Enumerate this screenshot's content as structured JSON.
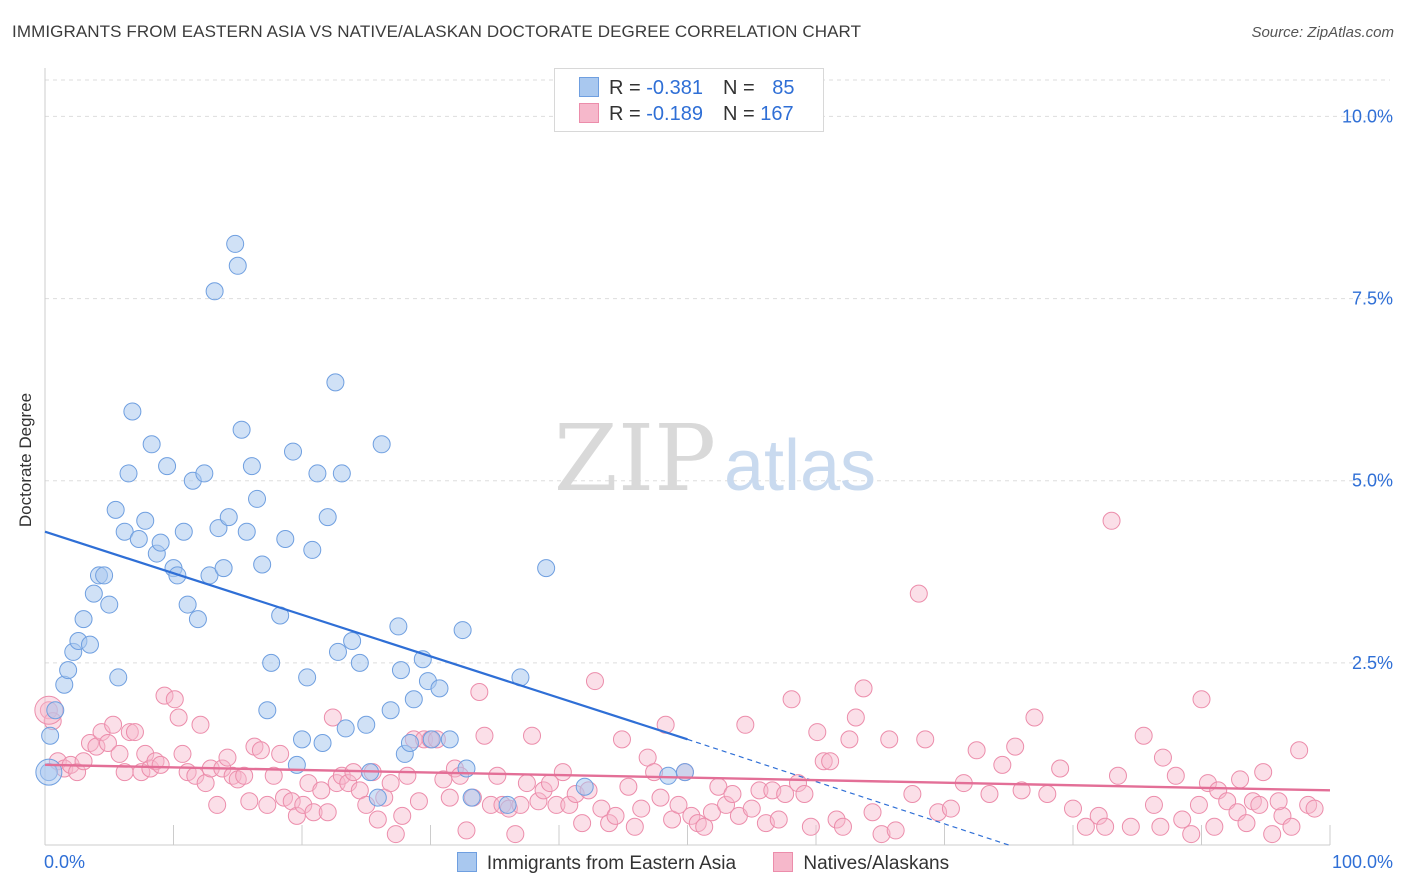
{
  "title": "IMMIGRANTS FROM EASTERN ASIA VS NATIVE/ALASKAN DOCTORATE DEGREE CORRELATION CHART",
  "source": "Source: ZipAtlas.com",
  "watermark": {
    "zip": "ZIP",
    "atlas": "atlas"
  },
  "colors": {
    "blue_fill": "#a9c8ef",
    "blue_stroke": "#6f9fe0",
    "blue_line": "#2f6fd6",
    "pink_fill": "#f6b8cb",
    "pink_stroke": "#ec8dab",
    "pink_line": "#e36f97",
    "tick_text": "#2f6fd6",
    "grid": "#dddddd"
  },
  "legend": {
    "rows": [
      {
        "r_label": "R = ",
        "r_value": "-0.381",
        "n_label": "N = ",
        "n_value": "85"
      },
      {
        "r_label": "R = ",
        "r_value": "-0.189",
        "n_label": "N = ",
        "n_value": "167"
      }
    ]
  },
  "chart_data": {
    "type": "scatter",
    "title": "IMMIGRANTS FROM EASTERN ASIA VS NATIVE/ALASKAN DOCTORATE DEGREE CORRELATION CHART",
    "xlabel": "",
    "ylabel": "Doctorate Degree",
    "xlim": [
      0,
      100
    ],
    "ylim": [
      0,
      10
    ],
    "x_tick_labels": [
      "0.0%",
      "100.0%"
    ],
    "y_ticks": [
      2.5,
      5.0,
      7.5,
      10.0
    ],
    "y_tick_labels": [
      "2.5%",
      "5.0%",
      "7.5%",
      "10.0%"
    ],
    "grid": true,
    "legend_position": "top-center",
    "series": [
      {
        "name": "Immigrants from Eastern Asia",
        "trend": {
          "x0": 0,
          "y0": 4.3,
          "x1": 50,
          "y1": 1.45,
          "dash_to_x": 75,
          "dash_to_y": 0.0
        },
        "points": [
          [
            0.3,
            1.0
          ],
          [
            0.4,
            1.5
          ],
          [
            0.8,
            1.85
          ],
          [
            1.5,
            2.2
          ],
          [
            1.8,
            2.4
          ],
          [
            2.2,
            2.65
          ],
          [
            2.6,
            2.8
          ],
          [
            3.0,
            3.1
          ],
          [
            3.5,
            2.75
          ],
          [
            3.8,
            3.45
          ],
          [
            4.2,
            3.7
          ],
          [
            4.6,
            3.7
          ],
          [
            5.0,
            3.3
          ],
          [
            5.5,
            4.6
          ],
          [
            5.7,
            2.3
          ],
          [
            6.2,
            4.3
          ],
          [
            6.5,
            5.1
          ],
          [
            6.8,
            5.95
          ],
          [
            7.3,
            4.2
          ],
          [
            7.8,
            4.45
          ],
          [
            8.3,
            5.5
          ],
          [
            8.7,
            4.0
          ],
          [
            9.0,
            4.15
          ],
          [
            9.5,
            5.2
          ],
          [
            10.0,
            3.8
          ],
          [
            10.3,
            3.7
          ],
          [
            10.8,
            4.3
          ],
          [
            11.1,
            3.3
          ],
          [
            11.5,
            5.0
          ],
          [
            11.9,
            3.1
          ],
          [
            12.4,
            5.1
          ],
          [
            12.8,
            3.7
          ],
          [
            13.2,
            7.6
          ],
          [
            13.5,
            4.35
          ],
          [
            13.9,
            3.8
          ],
          [
            14.3,
            4.5
          ],
          [
            14.8,
            8.25
          ],
          [
            15.0,
            7.95
          ],
          [
            15.3,
            5.7
          ],
          [
            15.7,
            4.3
          ],
          [
            16.1,
            5.2
          ],
          [
            16.5,
            4.75
          ],
          [
            16.9,
            3.85
          ],
          [
            17.3,
            1.85
          ],
          [
            17.6,
            2.5
          ],
          [
            18.3,
            3.15
          ],
          [
            18.7,
            4.2
          ],
          [
            19.3,
            5.4
          ],
          [
            19.6,
            1.1
          ],
          [
            20.0,
            1.45
          ],
          [
            20.4,
            2.3
          ],
          [
            20.8,
            4.05
          ],
          [
            21.2,
            5.1
          ],
          [
            21.6,
            1.4
          ],
          [
            22.0,
            4.5
          ],
          [
            22.6,
            6.35
          ],
          [
            22.8,
            2.65
          ],
          [
            23.1,
            5.1
          ],
          [
            23.4,
            1.6
          ],
          [
            23.9,
            2.8
          ],
          [
            24.5,
            2.5
          ],
          [
            25.0,
            1.65
          ],
          [
            25.3,
            1.0
          ],
          [
            25.9,
            0.65
          ],
          [
            26.2,
            5.5
          ],
          [
            26.9,
            1.85
          ],
          [
            27.5,
            3.0
          ],
          [
            27.7,
            2.4
          ],
          [
            28.0,
            1.25
          ],
          [
            28.4,
            1.4
          ],
          [
            28.7,
            2.0
          ],
          [
            29.4,
            2.55
          ],
          [
            29.8,
            2.25
          ],
          [
            30.1,
            1.45
          ],
          [
            30.7,
            2.15
          ],
          [
            31.5,
            1.45
          ],
          [
            32.5,
            2.95
          ],
          [
            32.8,
            1.05
          ],
          [
            33.2,
            0.65
          ],
          [
            36.0,
            0.55
          ],
          [
            37.0,
            2.3
          ],
          [
            39.0,
            3.8
          ],
          [
            42.0,
            0.8
          ],
          [
            48.5,
            0.95
          ],
          [
            49.8,
            1.0
          ]
        ]
      },
      {
        "name": "Natives/Alaskans",
        "trend": {
          "x0": 0,
          "y0": 1.1,
          "x1": 100,
          "y1": 0.75
        },
        "points": [
          [
            0.3,
            1.85
          ],
          [
            0.6,
            1.7
          ],
          [
            1.0,
            1.15
          ],
          [
            1.5,
            1.05
          ],
          [
            2.0,
            1.1
          ],
          [
            2.5,
            1.0
          ],
          [
            3.0,
            1.15
          ],
          [
            3.5,
            1.4
          ],
          [
            4.0,
            1.35
          ],
          [
            4.4,
            1.55
          ],
          [
            4.9,
            1.4
          ],
          [
            5.3,
            1.65
          ],
          [
            5.8,
            1.25
          ],
          [
            6.2,
            1.0
          ],
          [
            6.6,
            1.55
          ],
          [
            7.0,
            1.55
          ],
          [
            7.5,
            1.0
          ],
          [
            7.8,
            1.25
          ],
          [
            8.2,
            1.05
          ],
          [
            8.6,
            1.15
          ],
          [
            9.0,
            1.1
          ],
          [
            9.3,
            2.05
          ],
          [
            10.1,
            2.0
          ],
          [
            10.4,
            1.75
          ],
          [
            10.7,
            1.25
          ],
          [
            11.1,
            1.0
          ],
          [
            11.7,
            0.95
          ],
          [
            12.1,
            1.65
          ],
          [
            12.5,
            0.85
          ],
          [
            12.9,
            1.05
          ],
          [
            13.4,
            0.55
          ],
          [
            13.8,
            1.05
          ],
          [
            14.2,
            1.2
          ],
          [
            14.6,
            0.95
          ],
          [
            15.0,
            0.9
          ],
          [
            15.5,
            0.95
          ],
          [
            15.9,
            0.6
          ],
          [
            16.3,
            1.35
          ],
          [
            16.8,
            1.3
          ],
          [
            17.3,
            0.55
          ],
          [
            17.8,
            0.95
          ],
          [
            18.3,
            1.25
          ],
          [
            18.6,
            0.65
          ],
          [
            19.2,
            0.6
          ],
          [
            19.6,
            0.4
          ],
          [
            20.1,
            0.55
          ],
          [
            20.5,
            0.85
          ],
          [
            20.9,
            0.45
          ],
          [
            21.5,
            0.75
          ],
          [
            22.0,
            0.45
          ],
          [
            22.4,
            1.75
          ],
          [
            22.7,
            0.85
          ],
          [
            23.1,
            0.95
          ],
          [
            23.6,
            0.85
          ],
          [
            24.0,
            1.0
          ],
          [
            24.5,
            0.75
          ],
          [
            25.0,
            0.55
          ],
          [
            25.5,
            1.0
          ],
          [
            25.9,
            0.35
          ],
          [
            26.4,
            0.65
          ],
          [
            26.9,
            0.85
          ],
          [
            27.3,
            0.15
          ],
          [
            27.8,
            0.4
          ],
          [
            28.2,
            0.95
          ],
          [
            28.7,
            1.45
          ],
          [
            29.1,
            0.6
          ],
          [
            29.5,
            1.45
          ],
          [
            30.0,
            1.45
          ],
          [
            30.5,
            1.45
          ],
          [
            31.0,
            0.9
          ],
          [
            31.5,
            0.65
          ],
          [
            31.9,
            1.05
          ],
          [
            32.3,
            0.95
          ],
          [
            32.8,
            0.2
          ],
          [
            33.3,
            0.65
          ],
          [
            33.8,
            2.1
          ],
          [
            34.2,
            1.5
          ],
          [
            34.7,
            0.55
          ],
          [
            35.2,
            0.95
          ],
          [
            35.6,
            0.55
          ],
          [
            36.1,
            0.5
          ],
          [
            36.6,
            0.15
          ],
          [
            37.0,
            0.55
          ],
          [
            37.5,
            0.85
          ],
          [
            37.9,
            1.5
          ],
          [
            38.4,
            0.6
          ],
          [
            38.8,
            0.75
          ],
          [
            39.3,
            0.85
          ],
          [
            39.8,
            0.55
          ],
          [
            40.3,
            1.0
          ],
          [
            40.8,
            0.55
          ],
          [
            41.3,
            0.7
          ],
          [
            41.8,
            0.3
          ],
          [
            42.3,
            0.75
          ],
          [
            42.8,
            2.25
          ],
          [
            43.3,
            0.5
          ],
          [
            43.9,
            0.3
          ],
          [
            44.4,
            0.4
          ],
          [
            44.9,
            1.45
          ],
          [
            45.4,
            0.8
          ],
          [
            45.9,
            0.25
          ],
          [
            46.4,
            0.5
          ],
          [
            46.9,
            1.2
          ],
          [
            47.4,
            1.0
          ],
          [
            47.9,
            0.65
          ],
          [
            48.3,
            1.65
          ],
          [
            48.8,
            0.35
          ],
          [
            49.3,
            0.55
          ],
          [
            49.8,
            1.0
          ],
          [
            50.3,
            0.4
          ],
          [
            50.8,
            0.3
          ],
          [
            51.3,
            0.25
          ],
          [
            51.9,
            0.45
          ],
          [
            52.4,
            0.8
          ],
          [
            53.0,
            0.55
          ],
          [
            53.5,
            0.7
          ],
          [
            54.0,
            0.4
          ],
          [
            54.5,
            1.65
          ],
          [
            55.0,
            0.5
          ],
          [
            55.6,
            0.75
          ],
          [
            56.1,
            0.3
          ],
          [
            56.6,
            0.75
          ],
          [
            57.1,
            0.35
          ],
          [
            57.6,
            0.7
          ],
          [
            58.1,
            2.0
          ],
          [
            58.6,
            0.85
          ],
          [
            59.1,
            0.7
          ],
          [
            59.6,
            0.25
          ],
          [
            60.1,
            1.55
          ],
          [
            60.6,
            1.15
          ],
          [
            61.1,
            1.15
          ],
          [
            61.6,
            0.35
          ],
          [
            62.1,
            0.25
          ],
          [
            62.6,
            1.45
          ],
          [
            63.1,
            1.75
          ],
          [
            63.7,
            2.15
          ],
          [
            64.4,
            0.45
          ],
          [
            65.1,
            0.15
          ],
          [
            65.7,
            1.45
          ],
          [
            66.2,
            0.2
          ],
          [
            67.5,
            0.7
          ],
          [
            68.0,
            3.45
          ],
          [
            68.5,
            1.45
          ],
          [
            69.5,
            0.45
          ],
          [
            70.5,
            0.5
          ],
          [
            71.5,
            0.85
          ],
          [
            72.5,
            1.3
          ],
          [
            73.5,
            0.7
          ],
          [
            74.5,
            1.1
          ],
          [
            75.5,
            1.35
          ],
          [
            76.0,
            0.75
          ],
          [
            77.0,
            1.75
          ],
          [
            78.0,
            0.7
          ],
          [
            79.0,
            1.05
          ],
          [
            80.0,
            0.5
          ],
          [
            81.0,
            0.25
          ],
          [
            82.0,
            0.4
          ],
          [
            83.0,
            4.45
          ],
          [
            83.5,
            0.95
          ],
          [
            84.5,
            0.25
          ],
          [
            85.5,
            1.5
          ],
          [
            86.3,
            0.55
          ],
          [
            87.0,
            1.2
          ],
          [
            88.0,
            0.95
          ],
          [
            88.5,
            0.35
          ],
          [
            89.2,
            0.15
          ],
          [
            90.0,
            2.0
          ],
          [
            90.5,
            0.85
          ],
          [
            91.3,
            0.75
          ],
          [
            92.0,
            0.6
          ],
          [
            92.8,
            0.45
          ],
          [
            93.5,
            0.3
          ],
          [
            94.0,
            0.6
          ],
          [
            94.8,
            1.0
          ],
          [
            95.5,
            0.15
          ],
          [
            96.3,
            0.4
          ],
          [
            97.0,
            0.25
          ],
          [
            97.6,
            1.3
          ],
          [
            98.3,
            0.55
          ],
          [
            98.8,
            0.5
          ],
          [
            96.0,
            0.6
          ],
          [
            94.5,
            0.55
          ],
          [
            93.0,
            0.9
          ],
          [
            91.0,
            0.25
          ],
          [
            89.8,
            0.55
          ],
          [
            86.8,
            0.25
          ],
          [
            82.5,
            0.25
          ]
        ]
      }
    ]
  },
  "bottom_legend": [
    {
      "label": "Immigrants from Eastern Asia"
    },
    {
      "label": "Natives/Alaskans"
    }
  ]
}
